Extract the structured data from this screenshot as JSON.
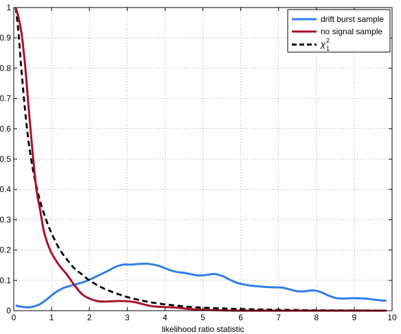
{
  "chart_data": {
    "type": "line",
    "title": "",
    "xlabel": "likelihood ratio statistic",
    "ylabel": "",
    "xlim": [
      0,
      10
    ],
    "ylim": [
      0,
      1
    ],
    "x_ticks": [
      "0",
      "1",
      "2",
      "3",
      "4",
      "5",
      "6",
      "7",
      "8",
      "9",
      "10"
    ],
    "y_ticks": [
      "0",
      "0.1",
      "0.2",
      "0.3",
      "0.4",
      "0.5",
      "0.6",
      "0.7",
      "0.8",
      "0.9",
      "1"
    ],
    "grid": true,
    "legend_position": "top-right",
    "series": [
      {
        "name": "drift burst sample",
        "color": "#2f7ee6",
        "style": "solid",
        "x": [
          0.05,
          0.2,
          0.35,
          0.5,
          0.7,
          0.9,
          1.1,
          1.3,
          1.5,
          1.7,
          1.9,
          2.1,
          2.3,
          2.5,
          2.7,
          2.9,
          3.1,
          3.3,
          3.5,
          3.7,
          3.9,
          4.1,
          4.3,
          4.5,
          4.7,
          4.9,
          5.1,
          5.3,
          5.5,
          5.7,
          5.9,
          6.1,
          6.3,
          6.5,
          6.7,
          6.9,
          7.1,
          7.3,
          7.5,
          7.7,
          7.9,
          8.1,
          8.3,
          8.5,
          8.7,
          8.9,
          9.1,
          9.3,
          9.5,
          9.7,
          9.85
        ],
        "y": [
          0.017,
          0.013,
          0.011,
          0.013,
          0.022,
          0.04,
          0.06,
          0.074,
          0.082,
          0.089,
          0.097,
          0.108,
          0.12,
          0.132,
          0.145,
          0.152,
          0.152,
          0.154,
          0.155,
          0.152,
          0.145,
          0.135,
          0.128,
          0.125,
          0.12,
          0.116,
          0.118,
          0.121,
          0.115,
          0.103,
          0.092,
          0.086,
          0.082,
          0.08,
          0.078,
          0.077,
          0.076,
          0.07,
          0.064,
          0.064,
          0.067,
          0.062,
          0.051,
          0.042,
          0.04,
          0.041,
          0.041,
          0.04,
          0.037,
          0.034,
          0.033
        ]
      },
      {
        "name": "no signal sample",
        "color": "#a8102a",
        "style": "solid",
        "x": [
          0.05,
          0.12,
          0.2,
          0.3,
          0.4,
          0.5,
          0.6,
          0.7,
          0.8,
          0.9,
          1.0,
          1.2,
          1.4,
          1.6,
          1.8,
          2.0,
          2.2,
          2.4,
          2.6,
          2.8,
          3.0,
          3.2,
          3.4,
          3.6,
          3.8,
          4.0,
          4.3,
          4.6,
          5.0,
          5.5,
          6.0,
          7.0,
          8.0,
          9.0,
          9.85
        ],
        "y": [
          1.0,
          0.97,
          0.92,
          0.81,
          0.66,
          0.52,
          0.4,
          0.33,
          0.26,
          0.22,
          0.19,
          0.15,
          0.12,
          0.085,
          0.055,
          0.04,
          0.032,
          0.03,
          0.031,
          0.032,
          0.031,
          0.028,
          0.022,
          0.016,
          0.013,
          0.012,
          0.01,
          0.006,
          0.003,
          0.001,
          0.0,
          0.0,
          0.0,
          0.0,
          0.0
        ]
      },
      {
        "name": "χ²₁",
        "color": "#000000",
        "style": "dashed",
        "x": [
          0.05,
          0.1,
          0.15,
          0.2,
          0.3,
          0.4,
          0.5,
          0.6,
          0.7,
          0.8,
          0.9,
          1.0,
          1.2,
          1.4,
          1.6,
          1.8,
          2.0,
          2.3,
          2.6,
          3.0,
          3.4,
          3.8,
          4.2,
          4.6,
          5.0,
          5.5,
          6.0,
          6.5,
          7.0,
          8.0,
          9.0,
          9.85
        ],
        "y": [
          1.0,
          0.95,
          0.88,
          0.8,
          0.66,
          0.55,
          0.47,
          0.41,
          0.36,
          0.32,
          0.285,
          0.255,
          0.205,
          0.17,
          0.14,
          0.12,
          0.1,
          0.078,
          0.062,
          0.045,
          0.033,
          0.024,
          0.018,
          0.013,
          0.01,
          0.0075,
          0.0055,
          0.004,
          0.003,
          0.0015,
          0.0008,
          0.0005
        ]
      }
    ]
  }
}
